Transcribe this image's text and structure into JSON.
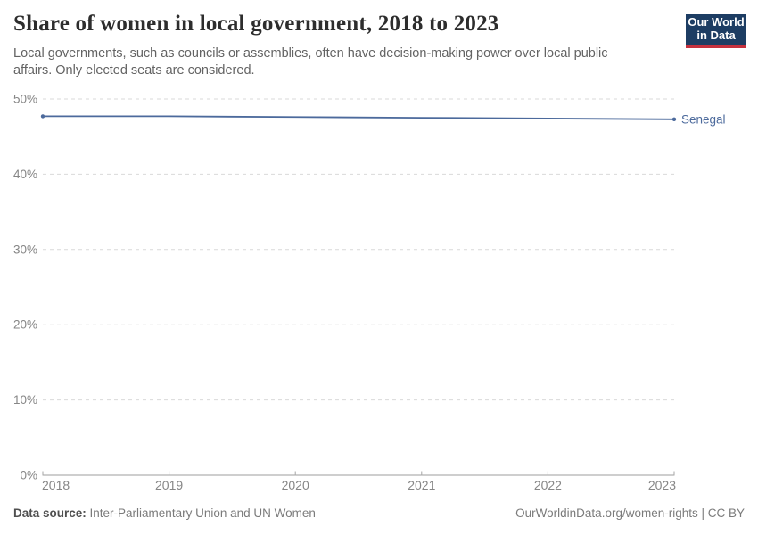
{
  "header": {
    "title": "Share of women in local government, 2018 to 2023",
    "subtitle": "Local governments, such as councils or assemblies, often have decision-making power over local public affairs. Only elected seats are considered.",
    "logo": {
      "line1": "Our World",
      "line2": "in Data"
    }
  },
  "chart_data": {
    "type": "line",
    "title": "Share of women in local government, 2018 to 2023",
    "x": [
      2018,
      2019,
      2020,
      2021,
      2022,
      2023
    ],
    "xtick_labels": [
      "2018",
      "2019",
      "2020",
      "2021",
      "2022",
      "2023"
    ],
    "series": [
      {
        "name": "Senegal",
        "color": "#4C6A9C",
        "values": [
          47.7,
          47.7,
          47.6,
          47.5,
          47.4,
          47.3
        ]
      }
    ],
    "xlabel": "",
    "ylabel": "",
    "ylim": [
      0,
      50
    ],
    "yticks": [
      0,
      10,
      20,
      30,
      40,
      50
    ],
    "ytick_labels": [
      "0%",
      "10%",
      "20%",
      "30%",
      "40%",
      "50%"
    ],
    "grid": "horizontal-dashed",
    "legend_position": "right-end-label"
  },
  "footer": {
    "source_label": "Data source:",
    "source_text": " Inter-Parliamentary Union and UN Women",
    "link_text": "OurWorldinData.org/women-rights | CC BY"
  },
  "colors": {
    "accent_line": "#4C6A9C",
    "logo_navy": "#1d3d63",
    "logo_red": "#c5313e",
    "grid_gray": "#d9d9d9",
    "axis_text_gray": "#868686"
  }
}
